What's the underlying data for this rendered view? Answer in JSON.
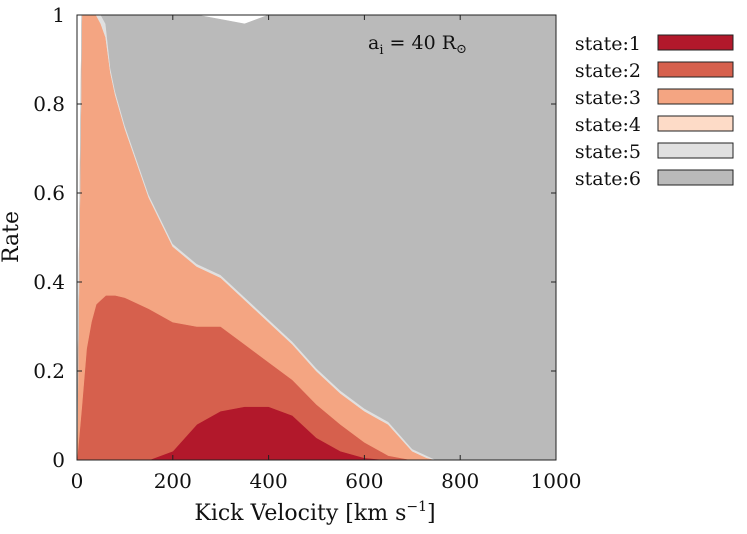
{
  "chart_data": {
    "type": "area",
    "stacked": true,
    "xlabel": "Kick Velocity [km s",
    "xlabel_sup": "−1",
    "xlabel_close": "]",
    "ylabel": "Rate",
    "xlim": [
      0,
      1000
    ],
    "ylim": [
      0,
      1
    ],
    "xticks": [
      "0",
      "200",
      "400",
      "600",
      "800",
      "1000"
    ],
    "yticks": [
      "0",
      "0.2",
      "0.4",
      "0.6",
      "0.8",
      "1"
    ],
    "annotation": {
      "main": "a",
      "sub": "i",
      "mid": " = 40 R",
      "symbol": "⊙"
    },
    "legend_position": "outside-right",
    "x": [
      0,
      10,
      20,
      30,
      40,
      50,
      60,
      70,
      80,
      100,
      150,
      200,
      250,
      300,
      350,
      400,
      450,
      500,
      550,
      600,
      650,
      700,
      730,
      750,
      800,
      900,
      1000
    ],
    "series": [
      {
        "name": "state:1",
        "color": "#b2182b",
        "values": [
          0,
          0,
          0,
          0,
          0,
          0,
          0,
          0,
          0,
          0,
          0,
          0.02,
          0.08,
          0.11,
          0.12,
          0.12,
          0.1,
          0.05,
          0.02,
          0.005,
          0,
          0,
          0,
          0,
          0,
          0,
          0
        ]
      },
      {
        "name": "state:2",
        "color": "#d6604d",
        "values": [
          0,
          0.12,
          0.25,
          0.31,
          0.35,
          0.36,
          0.37,
          0.37,
          0.37,
          0.365,
          0.34,
          0.29,
          0.22,
          0.19,
          0.14,
          0.1,
          0.08,
          0.075,
          0.06,
          0.035,
          0.01,
          0,
          0,
          0,
          0,
          0,
          0
        ]
      },
      {
        "name": "state:3",
        "color": "#f4a582",
        "values": [
          0,
          0.88,
          0.75,
          0.69,
          0.65,
          0.62,
          0.58,
          0.5,
          0.45,
          0.38,
          0.25,
          0.17,
          0.135,
          0.11,
          0.1,
          0.09,
          0.08,
          0.075,
          0.07,
          0.07,
          0.07,
          0.02,
          0.005,
          0,
          0,
          0,
          0
        ]
      },
      {
        "name": "state:4",
        "color": "#fddbc7",
        "values": [
          0,
          0,
          0,
          0,
          0,
          0,
          0,
          0,
          0,
          0,
          0,
          0,
          0,
          0,
          0,
          0,
          0,
          0,
          0,
          0,
          0,
          0,
          0,
          0,
          0,
          0,
          0
        ]
      },
      {
        "name": "state:5",
        "color": "#e0e0e0",
        "values": [
          0,
          0,
          0,
          0,
          0,
          0.02,
          0.03,
          0.01,
          0.008,
          0.007,
          0.006,
          0.006,
          0.006,
          0.006,
          0.006,
          0.006,
          0.006,
          0.006,
          0.006,
          0.006,
          0.006,
          0.005,
          0.005,
          0,
          0,
          0,
          0
        ]
      },
      {
        "name": "state:6",
        "color": "#bababa",
        "values": [
          0,
          0,
          0,
          0,
          0,
          0,
          0.02,
          0.12,
          0.172,
          0.248,
          0.404,
          0.514,
          0.559,
          0.574,
          0.614,
          0.684,
          0.734,
          0.794,
          0.844,
          0.884,
          0.914,
          0.975,
          0.99,
          1,
          1,
          1,
          1
        ]
      }
    ]
  }
}
